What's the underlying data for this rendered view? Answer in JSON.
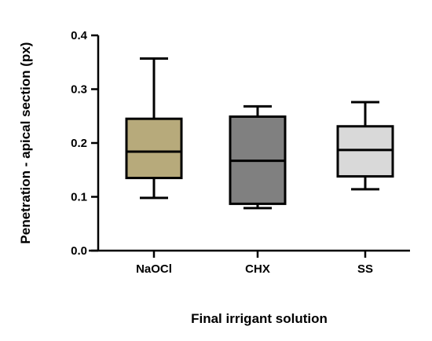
{
  "chart_data": {
    "type": "box",
    "xlabel": "Final irrigant solution",
    "ylabel": "Penetration - apical section (px)",
    "ylim": [
      0.0,
      0.4
    ],
    "yticks": [
      "0.0",
      "0.1",
      "0.2",
      "0.3",
      "0.4"
    ],
    "grid": false,
    "categories": [
      "NaOCl",
      "CHX",
      "SS"
    ],
    "boxes": [
      {
        "name": "NaOCl",
        "min": 0.098,
        "q1": 0.135,
        "median": 0.184,
        "q3": 0.245,
        "max": 0.357,
        "color": "#b7aa7b"
      },
      {
        "name": "CHX",
        "min": 0.079,
        "q1": 0.087,
        "median": 0.167,
        "q3": 0.249,
        "max": 0.268,
        "color": "#808080"
      },
      {
        "name": "SS",
        "min": 0.114,
        "q1": 0.138,
        "median": 0.187,
        "q3": 0.231,
        "max": 0.276,
        "color": "#d9d9d9"
      }
    ]
  }
}
